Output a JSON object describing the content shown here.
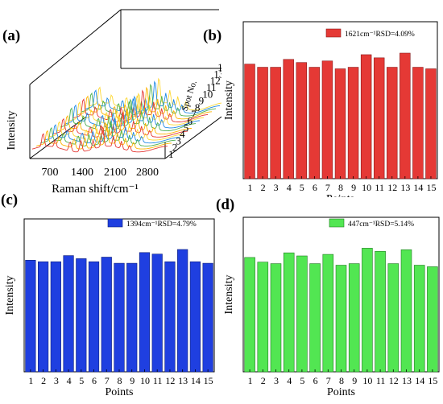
{
  "panels": {
    "a": "(a)",
    "b": "(b)",
    "c": "(c)",
    "d": "(d)"
  },
  "chart_data": [
    {
      "id": "a",
      "type": "line",
      "title": "",
      "xlabel": "Raman shift/cm⁻¹",
      "ylabel": "Intensity",
      "zlabel": "Spot No.",
      "x_ticks": [
        "700",
        "1400",
        "2100",
        "2800"
      ],
      "spot_ticks": [
        "1",
        "2",
        "3",
        "4",
        "5",
        "6",
        "7",
        "8",
        "9",
        "10",
        "11",
        "12",
        "13",
        "14",
        "15"
      ],
      "series_count": 15,
      "colors": [
        "#e53935",
        "#ffb300",
        "#4caf50",
        "#1e88e5",
        "#fdd835"
      ]
    },
    {
      "id": "b",
      "type": "bar",
      "xlabel": "Points",
      "ylabel": "Intensity",
      "legend": "1621cm⁻¹RSD=4.09%",
      "legend_position": "top-right",
      "color": "#e53935",
      "edge_color": "#8b1a1a",
      "categories": [
        "1",
        "2",
        "3",
        "4",
        "5",
        "6",
        "7",
        "8",
        "9",
        "10",
        "11",
        "12",
        "13",
        "14",
        "15"
      ],
      "values": [
        73,
        71,
        71,
        76,
        74,
        71,
        75,
        70,
        71,
        79,
        77,
        71,
        80,
        71,
        70
      ],
      "ylim": [
        0,
        100
      ]
    },
    {
      "id": "c",
      "type": "bar",
      "xlabel": "Points",
      "ylabel": "Intensity",
      "legend": "1394cm⁻¹RSD=4.79%",
      "legend_position": "top-right",
      "color": "#1f3fe0",
      "edge_color": "#0d1f7a",
      "categories": [
        "1",
        "2",
        "3",
        "4",
        "5",
        "6",
        "7",
        "8",
        "9",
        "10",
        "11",
        "12",
        "13",
        "14",
        "15"
      ],
      "values": [
        73,
        72,
        72,
        76,
        74,
        72,
        75,
        71,
        71,
        78,
        77,
        72,
        80,
        72,
        71
      ],
      "ylim": [
        0,
        100
      ]
    },
    {
      "id": "d",
      "type": "bar",
      "xlabel": "Points",
      "ylabel": "Intensity",
      "legend": "447cm⁻¹RSD=5.14%",
      "legend_position": "top-right",
      "color": "#52e652",
      "edge_color": "#1f7a1f",
      "categories": [
        "1",
        "2",
        "3",
        "4",
        "5",
        "6",
        "7",
        "8",
        "9",
        "10",
        "11",
        "12",
        "13",
        "14",
        "15"
      ],
      "values": [
        74,
        71,
        70,
        77,
        75,
        70,
        76,
        69,
        70,
        80,
        78,
        70,
        79,
        69,
        68
      ],
      "ylim": [
        0,
        100
      ]
    }
  ]
}
